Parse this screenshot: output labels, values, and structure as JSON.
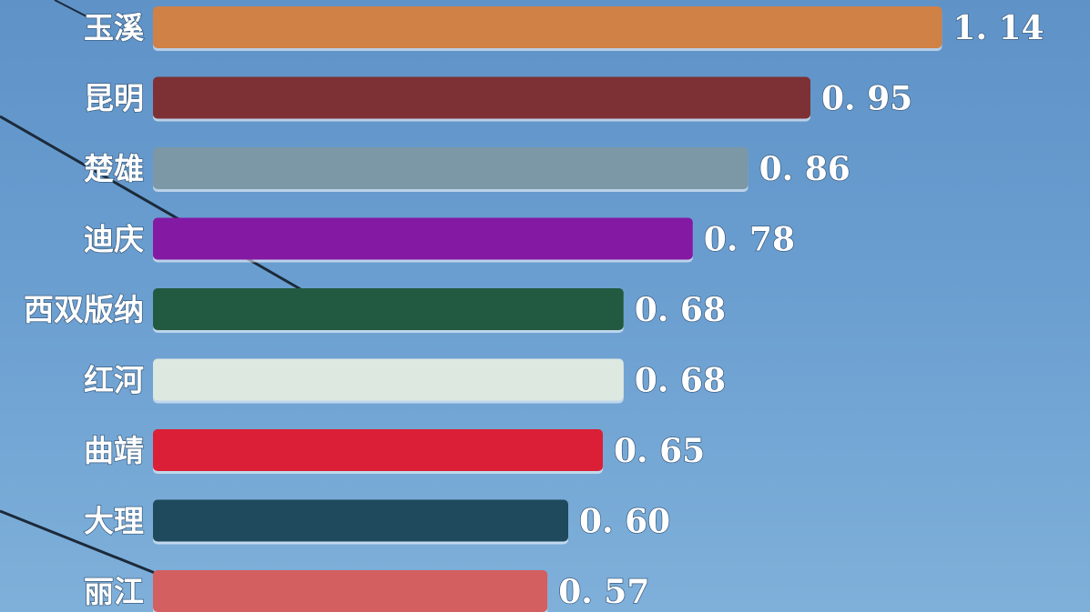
{
  "chart_data": {
    "type": "bar",
    "orientation": "horizontal",
    "categories": [
      "玉溪",
      "昆明",
      "楚雄",
      "迪庆",
      "西双版纳",
      "红河",
      "曲靖",
      "大理",
      "丽江"
    ],
    "values": [
      1.14,
      0.95,
      0.86,
      0.78,
      0.68,
      0.68,
      0.65,
      0.6,
      0.57
    ],
    "value_labels": [
      "1. 14",
      "0. 95",
      "0. 86",
      "0. 78",
      "0. 68",
      "0. 68",
      "0. 65",
      "0. 60",
      "0. 57"
    ],
    "colors": [
      "#cf8146",
      "#7e3134",
      "#7c97a5",
      "#8419a4",
      "#215a40",
      "#dde8e1",
      "#da1f37",
      "#1f4a5e",
      "#d45f60"
    ],
    "title": "",
    "xlabel": "",
    "ylabel": "",
    "grid": false,
    "legend": "none"
  }
}
